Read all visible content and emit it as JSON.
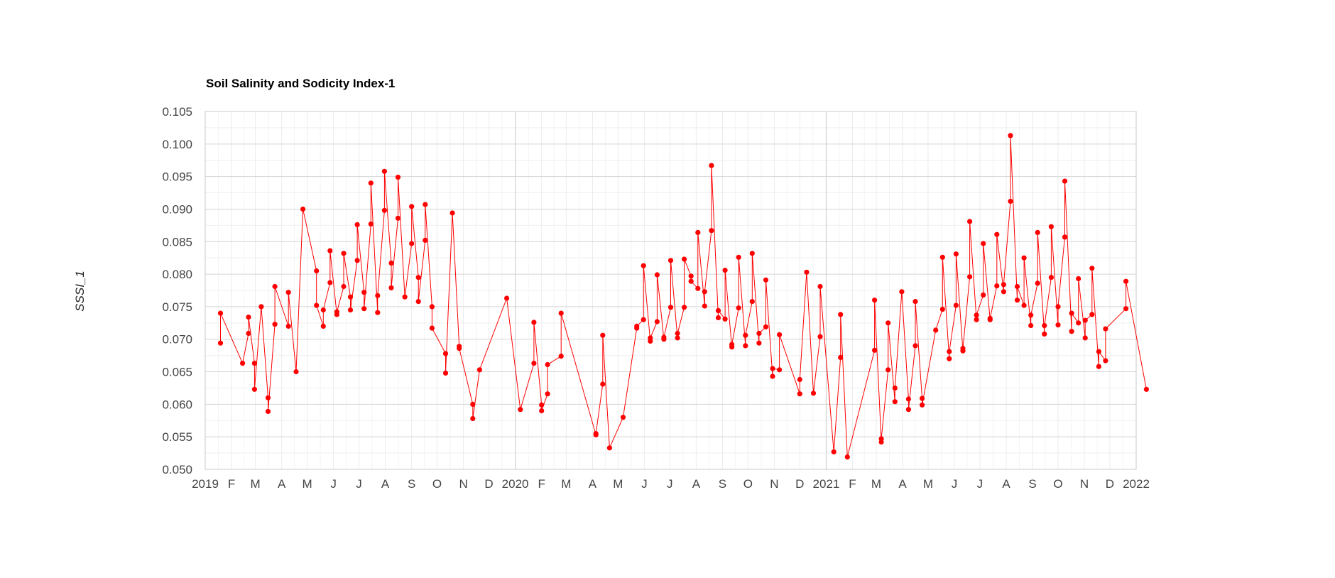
{
  "chart_data": {
    "type": "line",
    "title": "Soil Salinity and Sodicity Index-1",
    "xlabel": "",
    "ylabel": "SSSI_1",
    "ylim": [
      0.05,
      0.105
    ],
    "yticks": [
      "0.050",
      "0.055",
      "0.060",
      "0.065",
      "0.070",
      "0.075",
      "0.080",
      "0.085",
      "0.090",
      "0.095",
      "0.100",
      "0.105"
    ],
    "xlim": [
      "2019-01-01",
      "2022-01-01"
    ],
    "xticks": [
      {
        "date": "2019-01-01",
        "label": "2019"
      },
      {
        "date": "2019-02-01",
        "label": "F"
      },
      {
        "date": "2019-03-01",
        "label": "M"
      },
      {
        "date": "2019-04-01",
        "label": "A"
      },
      {
        "date": "2019-05-01",
        "label": "M"
      },
      {
        "date": "2019-06-01",
        "label": "J"
      },
      {
        "date": "2019-07-01",
        "label": "J"
      },
      {
        "date": "2019-08-01",
        "label": "A"
      },
      {
        "date": "2019-09-01",
        "label": "S"
      },
      {
        "date": "2019-10-01",
        "label": "O"
      },
      {
        "date": "2019-11-01",
        "label": "N"
      },
      {
        "date": "2019-12-01",
        "label": "D"
      },
      {
        "date": "2020-01-01",
        "label": "2020"
      },
      {
        "date": "2020-02-01",
        "label": "F"
      },
      {
        "date": "2020-03-01",
        "label": "M"
      },
      {
        "date": "2020-04-01",
        "label": "A"
      },
      {
        "date": "2020-05-01",
        "label": "M"
      },
      {
        "date": "2020-06-01",
        "label": "J"
      },
      {
        "date": "2020-07-01",
        "label": "J"
      },
      {
        "date": "2020-08-01",
        "label": "A"
      },
      {
        "date": "2020-09-01",
        "label": "S"
      },
      {
        "date": "2020-10-01",
        "label": "O"
      },
      {
        "date": "2020-11-01",
        "label": "N"
      },
      {
        "date": "2020-12-01",
        "label": "D"
      },
      {
        "date": "2021-01-01",
        "label": "2021"
      },
      {
        "date": "2021-02-01",
        "label": "F"
      },
      {
        "date": "2021-03-01",
        "label": "M"
      },
      {
        "date": "2021-04-01",
        "label": "A"
      },
      {
        "date": "2021-05-01",
        "label": "M"
      },
      {
        "date": "2021-06-01",
        "label": "J"
      },
      {
        "date": "2021-07-01",
        "label": "J"
      },
      {
        "date": "2021-08-01",
        "label": "A"
      },
      {
        "date": "2021-09-01",
        "label": "S"
      },
      {
        "date": "2021-10-01",
        "label": "O"
      },
      {
        "date": "2021-11-01",
        "label": "N"
      },
      {
        "date": "2021-12-01",
        "label": "D"
      },
      {
        "date": "2022-01-01",
        "label": "2022"
      }
    ],
    "grid": true,
    "legend": "none",
    "series": [
      {
        "color": "#ff0000",
        "points": [
          [
            "2019-01-19",
            0.0694
          ],
          [
            "2019-01-19",
            0.074
          ],
          [
            "2019-02-14",
            0.0663
          ],
          [
            "2019-02-21",
            0.0709
          ],
          [
            "2019-02-21",
            0.0734
          ],
          [
            "2019-02-28",
            0.0663
          ],
          [
            "2019-02-28",
            0.0623
          ],
          [
            "2019-03-08",
            0.075
          ],
          [
            "2019-03-16",
            0.061
          ],
          [
            "2019-03-16",
            0.0589
          ],
          [
            "2019-03-24",
            0.0723
          ],
          [
            "2019-03-24",
            0.0781
          ],
          [
            "2019-04-09",
            0.072
          ],
          [
            "2019-04-09",
            0.0772
          ],
          [
            "2019-04-18",
            0.065
          ],
          [
            "2019-04-26",
            0.09
          ],
          [
            "2019-05-12",
            0.0805
          ],
          [
            "2019-05-12",
            0.0752
          ],
          [
            "2019-05-20",
            0.072
          ],
          [
            "2019-05-20",
            0.0745
          ],
          [
            "2019-05-28",
            0.0787
          ],
          [
            "2019-05-28",
            0.0836
          ],
          [
            "2019-06-05",
            0.0738
          ],
          [
            "2019-06-05",
            0.0742
          ],
          [
            "2019-06-13",
            0.0781
          ],
          [
            "2019-06-13",
            0.0832
          ],
          [
            "2019-06-21",
            0.0765
          ],
          [
            "2019-06-21",
            0.0745
          ],
          [
            "2019-06-29",
            0.0821
          ],
          [
            "2019-06-29",
            0.0876
          ],
          [
            "2019-07-07",
            0.0772
          ],
          [
            "2019-07-07",
            0.0747
          ],
          [
            "2019-07-15",
            0.0877
          ],
          [
            "2019-07-15",
            0.094
          ],
          [
            "2019-07-23",
            0.0741
          ],
          [
            "2019-07-23",
            0.0767
          ],
          [
            "2019-07-31",
            0.0898
          ],
          [
            "2019-07-31",
            0.0958
          ],
          [
            "2019-08-08",
            0.0817
          ],
          [
            "2019-08-08",
            0.0779
          ],
          [
            "2019-08-16",
            0.0886
          ],
          [
            "2019-08-16",
            0.0949
          ],
          [
            "2019-08-24",
            0.0765
          ],
          [
            "2019-09-01",
            0.0847
          ],
          [
            "2019-09-01",
            0.0904
          ],
          [
            "2019-09-09",
            0.0795
          ],
          [
            "2019-09-09",
            0.0758
          ],
          [
            "2019-09-17",
            0.0852
          ],
          [
            "2019-09-17",
            0.0907
          ],
          [
            "2019-09-25",
            0.075
          ],
          [
            "2019-09-25",
            0.0717
          ],
          [
            "2019-10-11",
            0.0678
          ],
          [
            "2019-10-11",
            0.0648
          ],
          [
            "2019-10-19",
            0.0894
          ],
          [
            "2019-10-27",
            0.0689
          ],
          [
            "2019-10-27",
            0.0686
          ],
          [
            "2019-11-12",
            0.06
          ],
          [
            "2019-11-12",
            0.0578
          ],
          [
            "2019-11-20",
            0.0653
          ],
          [
            "2019-12-22",
            0.0763
          ],
          [
            "2020-01-07",
            0.0592
          ],
          [
            "2020-01-23",
            0.0663
          ],
          [
            "2020-01-23",
            0.0726
          ],
          [
            "2020-02-01",
            0.0599
          ],
          [
            "2020-02-01",
            0.059
          ],
          [
            "2020-02-08",
            0.0616
          ],
          [
            "2020-02-08",
            0.0661
          ],
          [
            "2020-02-24",
            0.0674
          ],
          [
            "2020-02-24",
            0.074
          ],
          [
            "2020-04-05",
            0.0553
          ],
          [
            "2020-04-05",
            0.0555
          ],
          [
            "2020-04-13",
            0.0631
          ],
          [
            "2020-04-13",
            0.0706
          ],
          [
            "2020-04-21",
            0.0533
          ],
          [
            "2020-05-07",
            0.058
          ],
          [
            "2020-05-23",
            0.0717
          ],
          [
            "2020-05-23",
            0.072
          ],
          [
            "2020-05-31",
            0.073
          ],
          [
            "2020-05-31",
            0.0813
          ],
          [
            "2020-06-08",
            0.0697
          ],
          [
            "2020-06-08",
            0.0702
          ],
          [
            "2020-06-16",
            0.0727
          ],
          [
            "2020-06-16",
            0.0799
          ],
          [
            "2020-06-24",
            0.07
          ],
          [
            "2020-06-24",
            0.0703
          ],
          [
            "2020-07-02",
            0.0749
          ],
          [
            "2020-07-02",
            0.0821
          ],
          [
            "2020-07-10",
            0.0702
          ],
          [
            "2020-07-10",
            0.0709
          ],
          [
            "2020-07-18",
            0.0749
          ],
          [
            "2020-07-18",
            0.0823
          ],
          [
            "2020-07-26",
            0.0797
          ],
          [
            "2020-07-26",
            0.0789
          ],
          [
            "2020-08-03",
            0.0778
          ],
          [
            "2020-08-03",
            0.0864
          ],
          [
            "2020-08-11",
            0.0751
          ],
          [
            "2020-08-11",
            0.0773
          ],
          [
            "2020-08-19",
            0.0867
          ],
          [
            "2020-08-19",
            0.0967
          ],
          [
            "2020-08-27",
            0.0733
          ],
          [
            "2020-08-27",
            0.0744
          ],
          [
            "2020-09-04",
            0.0731
          ],
          [
            "2020-09-04",
            0.0806
          ],
          [
            "2020-09-12",
            0.0688
          ],
          [
            "2020-09-12",
            0.0692
          ],
          [
            "2020-09-20",
            0.0748
          ],
          [
            "2020-09-20",
            0.0826
          ],
          [
            "2020-09-28",
            0.069
          ],
          [
            "2020-09-28",
            0.0706
          ],
          [
            "2020-10-06",
            0.0758
          ],
          [
            "2020-10-06",
            0.0832
          ],
          [
            "2020-10-14",
            0.0694
          ],
          [
            "2020-10-14",
            0.0709
          ],
          [
            "2020-10-22",
            0.0719
          ],
          [
            "2020-10-22",
            0.0791
          ],
          [
            "2020-10-30",
            0.0643
          ],
          [
            "2020-10-30",
            0.0655
          ],
          [
            "2020-11-07",
            0.0653
          ],
          [
            "2020-11-07",
            0.0707
          ],
          [
            "2020-12-01",
            0.0616
          ],
          [
            "2020-12-01",
            0.0638
          ],
          [
            "2020-12-09",
            0.0803
          ],
          [
            "2020-12-17",
            0.0617
          ],
          [
            "2020-12-25",
            0.0704
          ],
          [
            "2020-12-25",
            0.0781
          ],
          [
            "2021-01-10",
            0.0527
          ],
          [
            "2021-01-18",
            0.0672
          ],
          [
            "2021-01-18",
            0.0738
          ],
          [
            "2021-01-26",
            0.0519
          ],
          [
            "2021-02-27",
            0.0683
          ],
          [
            "2021-02-27",
            0.076
          ],
          [
            "2021-03-07",
            0.0542
          ],
          [
            "2021-03-07",
            0.0547
          ],
          [
            "2021-03-15",
            0.0653
          ],
          [
            "2021-03-15",
            0.0725
          ],
          [
            "2021-03-23",
            0.0604
          ],
          [
            "2021-03-23",
            0.0625
          ],
          [
            "2021-03-31",
            0.0773
          ],
          [
            "2021-04-08",
            0.0608
          ],
          [
            "2021-04-08",
            0.0592
          ],
          [
            "2021-04-16",
            0.069
          ],
          [
            "2021-04-16",
            0.0758
          ],
          [
            "2021-04-24",
            0.0609
          ],
          [
            "2021-04-24",
            0.0599
          ],
          [
            "2021-05-10",
            0.0714
          ],
          [
            "2021-05-18",
            0.0746
          ],
          [
            "2021-05-18",
            0.0826
          ],
          [
            "2021-05-26",
            0.067
          ],
          [
            "2021-05-26",
            0.0681
          ],
          [
            "2021-06-03",
            0.0752
          ],
          [
            "2021-06-03",
            0.0831
          ],
          [
            "2021-06-11",
            0.0682
          ],
          [
            "2021-06-11",
            0.0686
          ],
          [
            "2021-06-19",
            0.0796
          ],
          [
            "2021-06-19",
            0.0881
          ],
          [
            "2021-06-27",
            0.073
          ],
          [
            "2021-06-27",
            0.0737
          ],
          [
            "2021-07-05",
            0.0768
          ],
          [
            "2021-07-05",
            0.0847
          ],
          [
            "2021-07-13",
            0.073
          ],
          [
            "2021-07-13",
            0.0732
          ],
          [
            "2021-07-21",
            0.0782
          ],
          [
            "2021-07-21",
            0.0861
          ],
          [
            "2021-07-29",
            0.0773
          ],
          [
            "2021-07-29",
            0.0784
          ],
          [
            "2021-08-06",
            0.0912
          ],
          [
            "2021-08-06",
            0.1013
          ],
          [
            "2021-08-14",
            0.076
          ],
          [
            "2021-08-14",
            0.0781
          ],
          [
            "2021-08-22",
            0.0752
          ],
          [
            "2021-08-22",
            0.0825
          ],
          [
            "2021-08-30",
            0.0721
          ],
          [
            "2021-08-30",
            0.0737
          ],
          [
            "2021-09-07",
            0.0786
          ],
          [
            "2021-09-07",
            0.0864
          ],
          [
            "2021-09-15",
            0.0708
          ],
          [
            "2021-09-15",
            0.0721
          ],
          [
            "2021-09-23",
            0.0795
          ],
          [
            "2021-09-23",
            0.0873
          ],
          [
            "2021-10-01",
            0.0722
          ],
          [
            "2021-10-01",
            0.075
          ],
          [
            "2021-10-09",
            0.0857
          ],
          [
            "2021-10-09",
            0.0943
          ],
          [
            "2021-10-17",
            0.0712
          ],
          [
            "2021-10-17",
            0.074
          ],
          [
            "2021-10-25",
            0.0725
          ],
          [
            "2021-10-25",
            0.0793
          ],
          [
            "2021-11-02",
            0.0702
          ],
          [
            "2021-11-02",
            0.0729
          ],
          [
            "2021-11-10",
            0.0738
          ],
          [
            "2021-11-10",
            0.0809
          ],
          [
            "2021-11-18",
            0.0658
          ],
          [
            "2021-11-18",
            0.0681
          ],
          [
            "2021-11-26",
            0.0667
          ],
          [
            "2021-11-26",
            0.0716
          ],
          [
            "2021-12-20",
            0.0747
          ],
          [
            "2021-12-20",
            0.0789
          ],
          [
            "2022-01-13",
            0.0623
          ]
        ]
      }
    ]
  }
}
